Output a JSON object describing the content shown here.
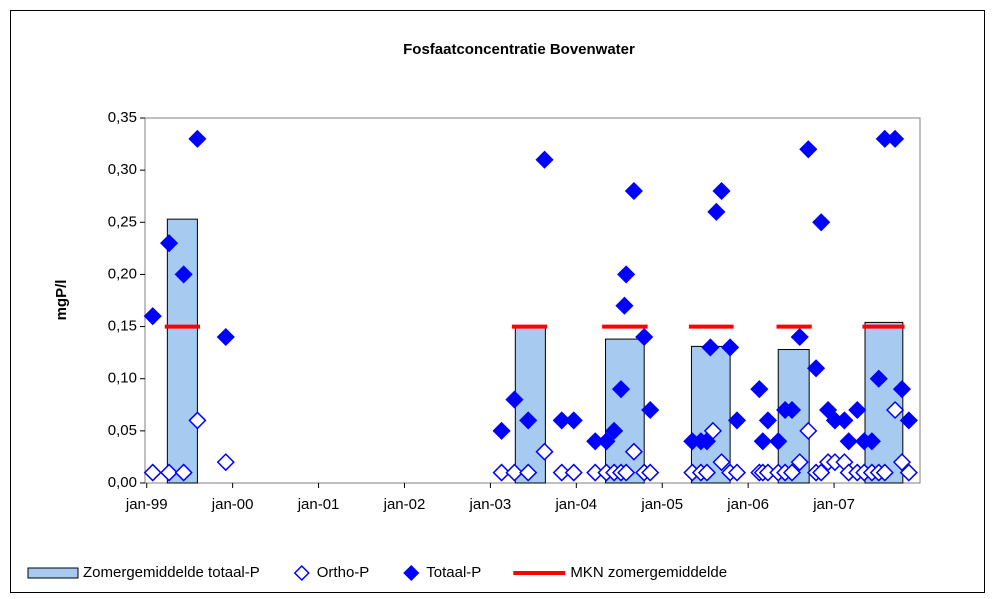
{
  "chart_data": {
    "type": "scatter",
    "title": "Fosfaatconcentratie Bovenwater",
    "y_label": "mgP/l",
    "xlim": [
      1998.98,
      2008.0
    ],
    "xticks": [
      {
        "value": 1999,
        "label": "jan-99"
      },
      {
        "value": 2000,
        "label": "jan-00"
      },
      {
        "value": 2001,
        "label": "jan-01"
      },
      {
        "value": 2002,
        "label": "jan-02"
      },
      {
        "value": 2003,
        "label": "jan-03"
      },
      {
        "value": 2004,
        "label": "jan-04"
      },
      {
        "value": 2005,
        "label": "jan-05"
      },
      {
        "value": 2006,
        "label": "jan-06"
      },
      {
        "value": 2007,
        "label": "jan-07"
      }
    ],
    "ylim": [
      0,
      0.35
    ],
    "yticks": [
      {
        "value": 0,
        "label": "0,00"
      },
      {
        "value": 0.05,
        "label": "0,05"
      },
      {
        "value": 0.1,
        "label": "0,10"
      },
      {
        "value": 0.15,
        "label": "0,15"
      },
      {
        "value": 0.2,
        "label": "0,20"
      },
      {
        "value": 0.25,
        "label": "0,25"
      },
      {
        "value": 0.3,
        "label": "0,30"
      },
      {
        "value": 0.35,
        "label": "0,35"
      }
    ],
    "legend": "bottom",
    "series": [
      {
        "name": "Zomergemiddelde totaal-P",
        "type": "bar",
        "color": "#a6caf0",
        "x_start": [
          1999.24,
          2003.29,
          2004.34,
          2005.34,
          2006.35,
          2007.36
        ],
        "x_end": [
          1999.59,
          2003.64,
          2004.79,
          2005.79,
          2006.71,
          2007.8
        ],
        "values": [
          0.253,
          0.15,
          0.138,
          0.131,
          0.128,
          0.154
        ]
      },
      {
        "name": "Ortho-P",
        "type": "scatter",
        "marker": "open-diamond",
        "color": "#0000ff",
        "x": [
          1999.07,
          1999.26,
          1999.43,
          1999.59,
          1999.92,
          2003.13,
          2003.28,
          2003.44,
          2003.63,
          2003.83,
          2003.97,
          2004.22,
          2004.35,
          2004.44,
          2004.52,
          2004.58,
          2004.67,
          2004.79,
          2004.86,
          2005.35,
          2005.45,
          2005.52,
          2005.59,
          2005.69,
          2005.79,
          2005.87,
          2006.13,
          2006.17,
          2006.23,
          2006.35,
          2006.43,
          2006.51,
          2006.6,
          2006.7,
          2006.79,
          2006.85,
          2006.93,
          2007.01,
          2007.12,
          2007.17,
          2007.27,
          2007.35,
          2007.44,
          2007.52,
          2007.59,
          2007.71,
          2007.79,
          2007.87
        ],
        "values": [
          0.01,
          0.01,
          0.01,
          0.06,
          0.02,
          0.01,
          0.01,
          0.01,
          0.03,
          0.01,
          0.01,
          0.01,
          0.01,
          0.01,
          0.01,
          0.01,
          0.03,
          0.01,
          0.01,
          0.01,
          0.01,
          0.01,
          0.05,
          0.02,
          0.01,
          0.01,
          0.01,
          0.01,
          0.01,
          0.01,
          0.01,
          0.01,
          0.02,
          0.05,
          0.01,
          0.01,
          0.02,
          0.02,
          0.02,
          0.01,
          0.01,
          0.01,
          0.01,
          0.01,
          0.01,
          0.07,
          0.02,
          0.01
        ]
      },
      {
        "name": "Totaal-P",
        "type": "scatter",
        "marker": "filled-diamond",
        "color": "#0000ff",
        "x": [
          1999.07,
          1999.26,
          1999.43,
          1999.59,
          1999.92,
          2003.13,
          2003.28,
          2003.44,
          2003.63,
          2003.83,
          2003.97,
          2004.22,
          2004.35,
          2004.44,
          2004.52,
          2004.56,
          2004.58,
          2004.67,
          2004.79,
          2004.86,
          2005.35,
          2005.45,
          2005.52,
          2005.56,
          2005.63,
          2005.69,
          2005.79,
          2005.87,
          2006.13,
          2006.17,
          2006.23,
          2006.35,
          2006.43,
          2006.51,
          2006.6,
          2006.7,
          2006.79,
          2006.85,
          2006.93,
          2007.01,
          2007.12,
          2007.17,
          2007.27,
          2007.35,
          2007.44,
          2007.52,
          2007.59,
          2007.71,
          2007.79,
          2007.87
        ],
        "values": [
          0.16,
          0.23,
          0.2,
          0.33,
          0.14,
          0.05,
          0.08,
          0.06,
          0.31,
          0.06,
          0.06,
          0.04,
          0.04,
          0.05,
          0.09,
          0.17,
          0.2,
          0.28,
          0.14,
          0.07,
          0.04,
          0.04,
          0.04,
          0.13,
          0.26,
          0.28,
          0.13,
          0.06,
          0.09,
          0.04,
          0.06,
          0.04,
          0.07,
          0.07,
          0.14,
          0.32,
          0.11,
          0.25,
          0.07,
          0.06,
          0.06,
          0.04,
          0.07,
          0.04,
          0.04,
          0.1,
          0.33,
          0.33,
          0.09,
          0.06
        ]
      },
      {
        "name": "MKN zomergemiddelde",
        "type": "segment",
        "color": "#ff0000",
        "x_start": [
          1999.21,
          2003.25,
          2004.3,
          2005.31,
          2006.33,
          2007.33
        ],
        "x_end": [
          1999.62,
          2003.66,
          2004.83,
          2005.83,
          2006.74,
          2007.82
        ],
        "values": [
          0.15,
          0.15,
          0.15,
          0.15,
          0.15,
          0.15
        ]
      }
    ]
  }
}
